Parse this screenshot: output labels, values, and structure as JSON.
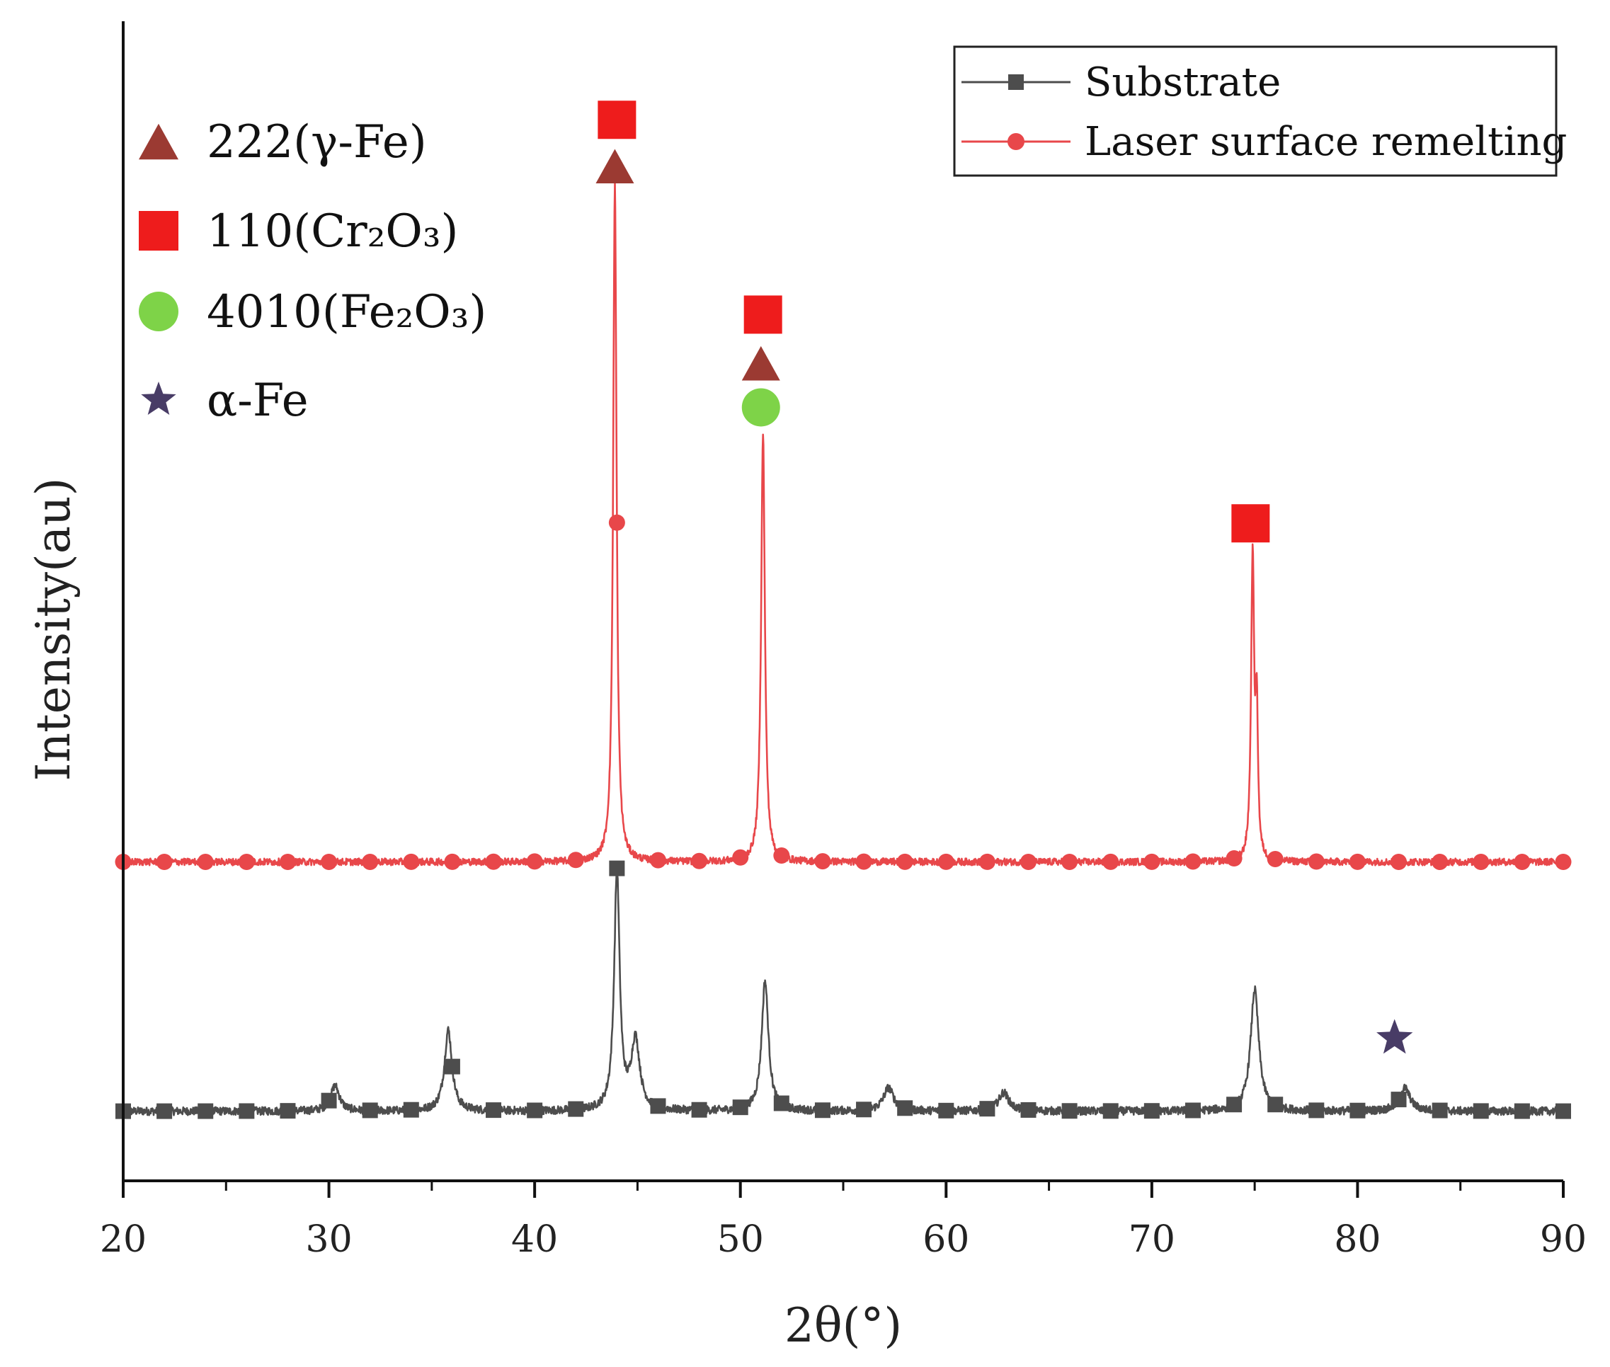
{
  "chart_data": {
    "type": "line",
    "title": "",
    "xlabel": "2θ(°)",
    "ylabel": "Intensity(au)",
    "xlim": [
      20,
      90
    ],
    "ylim": [
      0,
      100
    ],
    "xticks": [
      20,
      30,
      40,
      50,
      60,
      70,
      80,
      90
    ],
    "xtick_labels": [
      "20",
      "30",
      "40",
      "50",
      "60",
      "70",
      "80",
      "90"
    ],
    "minor_xticks": [
      25,
      35,
      45,
      55,
      65,
      75,
      85
    ],
    "legend_position": "top-right",
    "series": [
      {
        "name": "Substrate",
        "color": "#4d4d4d",
        "marker": "square",
        "baseline": 6,
        "noise": 0.35,
        "marker_start": 20,
        "marker_step": 2,
        "peaks": [
          {
            "x": 30.3,
            "h": 2.2,
            "w": 0.25
          },
          {
            "x": 35.8,
            "h": 7.0,
            "w": 0.22
          },
          {
            "x": 44.0,
            "h": 20.5,
            "w": 0.16
          },
          {
            "x": 44.9,
            "h": 6.0,
            "w": 0.25
          },
          {
            "x": 51.2,
            "h": 11.2,
            "w": 0.2
          },
          {
            "x": 57.2,
            "h": 2.0,
            "w": 0.3
          },
          {
            "x": 62.8,
            "h": 1.6,
            "w": 0.3
          },
          {
            "x": 75.0,
            "h": 10.5,
            "w": 0.24
          },
          {
            "x": 82.3,
            "h": 2.0,
            "w": 0.3
          }
        ]
      },
      {
        "name": "Laser surface remelting",
        "color": "#e8474a",
        "marker": "circle",
        "baseline": 27.5,
        "noise": 0.3,
        "marker_start": 20,
        "marker_step": 2,
        "peaks": [
          {
            "x": 43.9,
            "h": 58.5,
            "w": 0.1
          },
          {
            "x": 51.1,
            "h": 37.0,
            "w": 0.11
          },
          {
            "x": 74.9,
            "h": 26.0,
            "w": 0.09
          },
          {
            "x": 75.1,
            "h": 12.0,
            "w": 0.07
          }
        ]
      }
    ],
    "phase_legend": [
      {
        "symbol": "triangle",
        "color": "#9b3a32",
        "label": "222(γ-Fe)"
      },
      {
        "symbol": "square",
        "color": "#ee1c1c",
        "label": "110(Cr₂O₃)"
      },
      {
        "symbol": "circle",
        "color": "#7ed348",
        "label": "4010(Fe₂O₃)"
      },
      {
        "symbol": "star",
        "color": "#483c66",
        "label": "α-Fe"
      }
    ],
    "phase_markers": [
      {
        "symbol": "square",
        "x": 44.0,
        "y": 91.5
      },
      {
        "symbol": "triangle",
        "x": 43.9,
        "y": 87.5
      },
      {
        "symbol": "square",
        "x": 51.1,
        "y": 74.7
      },
      {
        "symbol": "triangle",
        "x": 51.0,
        "y": 70.5
      },
      {
        "symbol": "circle",
        "x": 51.0,
        "y": 66.7
      },
      {
        "symbol": "square",
        "x": 74.8,
        "y": 56.7
      },
      {
        "symbol": "star",
        "x": 81.8,
        "y": 12.3
      }
    ]
  }
}
